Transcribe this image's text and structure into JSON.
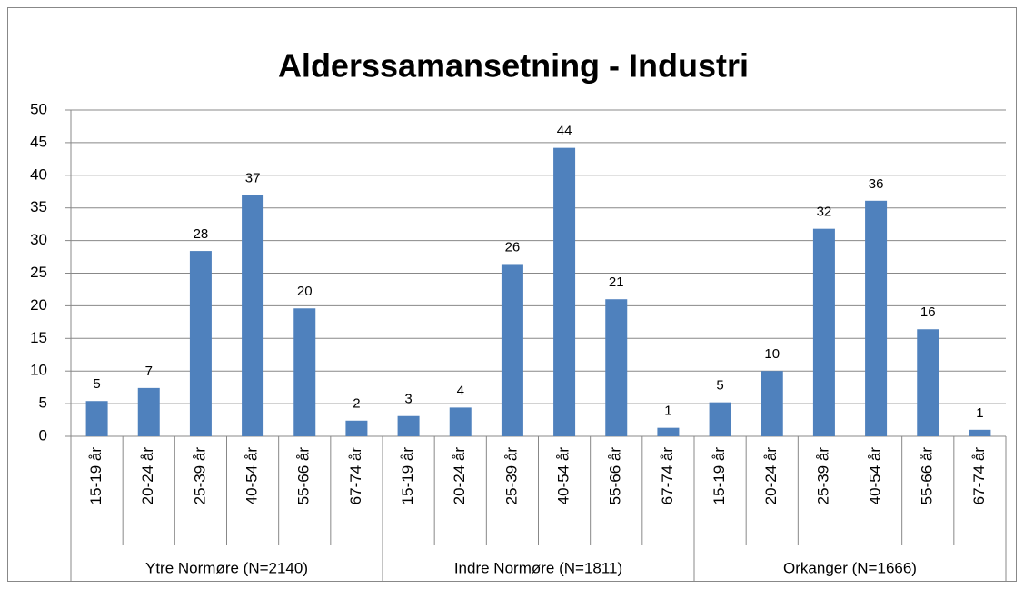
{
  "chart_data": {
    "type": "bar",
    "title": "Alderssamansetning - Industri",
    "color": "#4f81bd",
    "grid": true,
    "ylim": [
      0,
      50
    ],
    "yticks": [
      0,
      5,
      10,
      15,
      20,
      25,
      30,
      35,
      40,
      45,
      50
    ],
    "groups": [
      {
        "name": "Ytre Normøre (N=2140)",
        "categories": [
          "15-19 år",
          "20-24 år",
          "25-39 år",
          "40-54 år",
          "55-66 år",
          "67-74 år"
        ],
        "values": [
          5.4,
          7.4,
          28.4,
          37.0,
          19.6,
          2.4
        ],
        "value_labels": [
          "5",
          "7",
          "28",
          "37",
          "20",
          "2"
        ]
      },
      {
        "name": "Indre Normøre (N=1811)",
        "categories": [
          "15-19 år",
          "20-24 år",
          "25-39 år",
          "40-54 år",
          "55-66 år",
          "67-74 år"
        ],
        "values": [
          3.1,
          4.4,
          26.4,
          44.2,
          21.0,
          1.3
        ],
        "value_labels": [
          "3",
          "4",
          "26",
          "44",
          "21",
          "1"
        ]
      },
      {
        "name": "Orkanger (N=1666)",
        "categories": [
          "15-19 år",
          "20-24 år",
          "25-39 år",
          "40-54 år",
          "55-66 år",
          "67-74 år"
        ],
        "values": [
          5.2,
          10.0,
          31.8,
          36.1,
          16.4,
          1.0
        ],
        "value_labels": [
          "5",
          "10",
          "32",
          "36",
          "16",
          "1"
        ]
      }
    ]
  }
}
